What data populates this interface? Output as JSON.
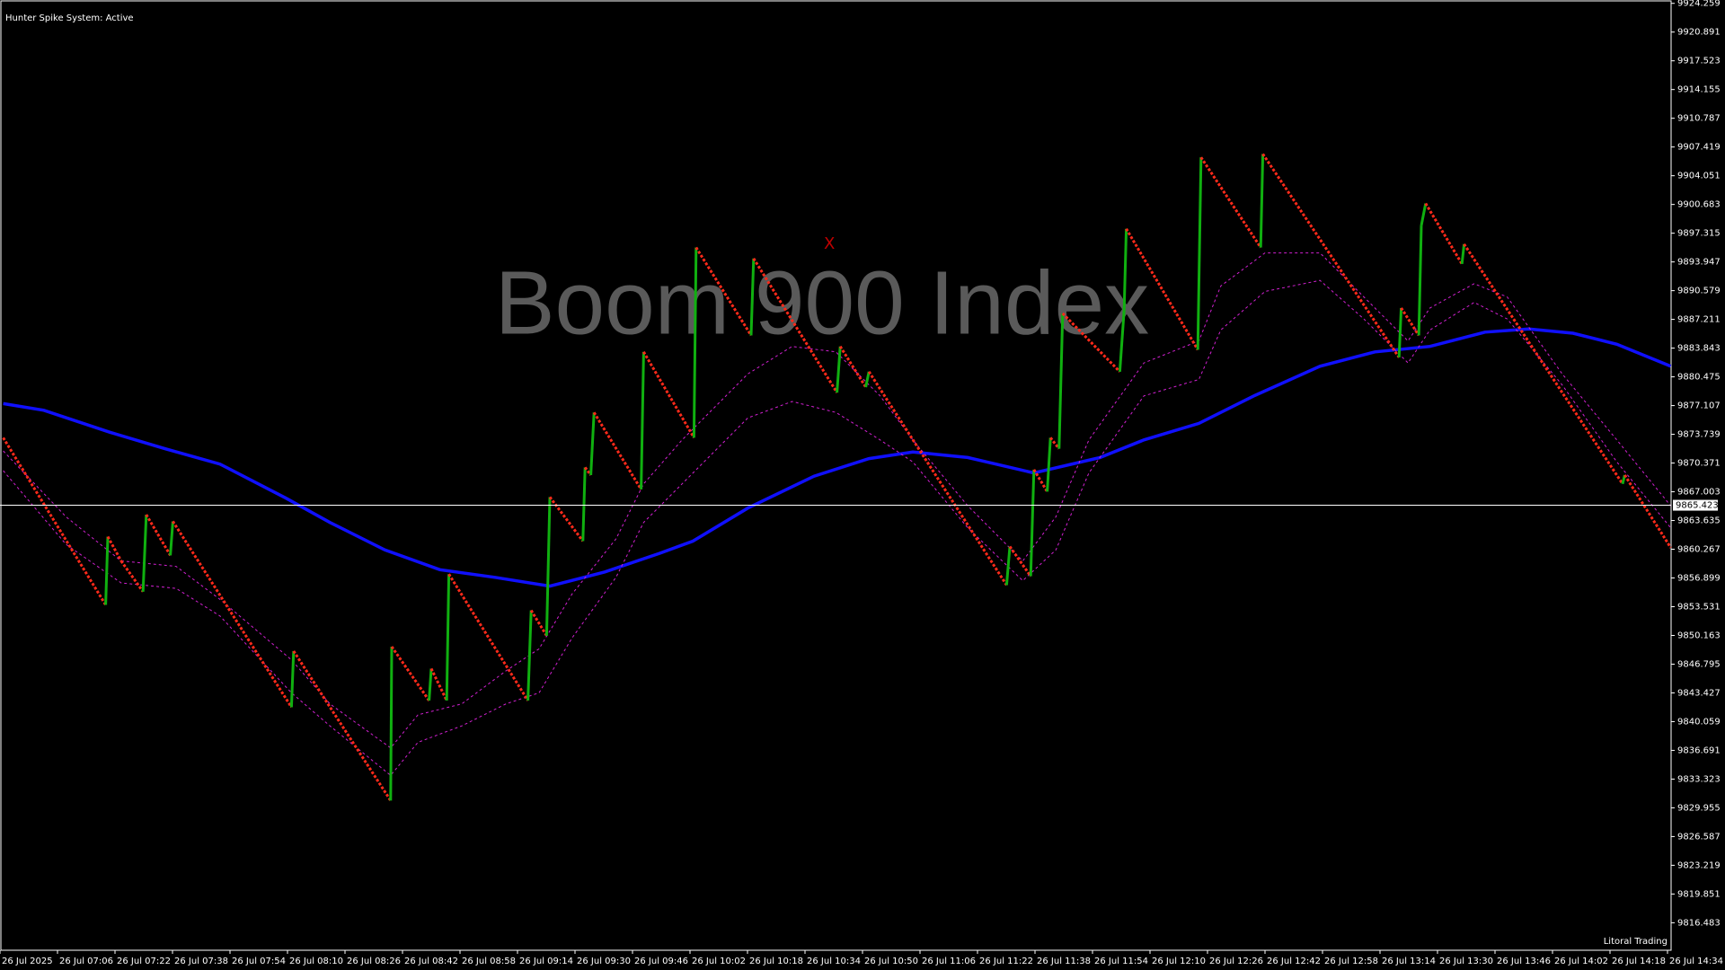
{
  "chart_data": {
    "type": "line",
    "title": "Boom 900 Index",
    "indicator_label": "Hunter Spike System: Active",
    "footer_label": "Litoral Trading",
    "marker_annotation": {
      "text": "X",
      "x": 640.8,
      "y": 9896.03,
      "color": "#c00000"
    },
    "current_price": 9865.423,
    "xlim": [
      410,
      875
    ],
    "ylim": [
      9813.26,
      9924.65
    ],
    "xticks": [
      {
        "value": 410,
        "label": "26 Jul 2025"
      },
      {
        "value": 426,
        "label": "26 Jul 07:06"
      },
      {
        "value": 442,
        "label": "26 Jul 07:22"
      },
      {
        "value": 458,
        "label": "26 Jul 07:38"
      },
      {
        "value": 474,
        "label": "26 Jul 07:54"
      },
      {
        "value": 490,
        "label": "26 Jul 08:10"
      },
      {
        "value": 506,
        "label": "26 Jul 08:26"
      },
      {
        "value": 522,
        "label": "26 Jul 08:42"
      },
      {
        "value": 538,
        "label": "26 Jul 08:58"
      },
      {
        "value": 554,
        "label": "26 Jul 09:14"
      },
      {
        "value": 570,
        "label": "26 Jul 09:30"
      },
      {
        "value": 586,
        "label": "26 Jul 09:46"
      },
      {
        "value": 602,
        "label": "26 Jul 10:02"
      },
      {
        "value": 618,
        "label": "26 Jul 10:18"
      },
      {
        "value": 634,
        "label": "26 Jul 10:34"
      },
      {
        "value": 650,
        "label": "26 Jul 10:50"
      },
      {
        "value": 666,
        "label": "26 Jul 11:06"
      },
      {
        "value": 682,
        "label": "26 Jul 11:22"
      },
      {
        "value": 698,
        "label": "26 Jul 11:38"
      },
      {
        "value": 714,
        "label": "26 Jul 11:54"
      },
      {
        "value": 730,
        "label": "26 Jul 12:10"
      },
      {
        "value": 746,
        "label": "26 Jul 12:26"
      },
      {
        "value": 762,
        "label": "26 Jul 12:42"
      },
      {
        "value": 778,
        "label": "26 Jul 12:58"
      },
      {
        "value": 794,
        "label": "26 Jul 13:14"
      },
      {
        "value": 810,
        "label": "26 Jul 13:30"
      },
      {
        "value": 826,
        "label": "26 Jul 13:46"
      },
      {
        "value": 842,
        "label": "26 Jul 14:02"
      },
      {
        "value": 858,
        "label": "26 Jul 14:18"
      },
      {
        "value": 874,
        "label": "26 Jul 14:34"
      }
    ],
    "yticks": [
      9924.259,
      9920.891,
      9917.523,
      9914.155,
      9910.787,
      9907.419,
      9904.051,
      9900.683,
      9897.315,
      9893.947,
      9890.579,
      9887.211,
      9883.843,
      9880.475,
      9877.107,
      9873.739,
      9870.371,
      9867.003,
      9863.635,
      9860.267,
      9856.899,
      9853.531,
      9850.163,
      9846.795,
      9843.427,
      9840.059,
      9836.691,
      9833.323,
      9829.955,
      9826.587,
      9823.219,
      9819.851,
      9816.483
    ],
    "series": [
      {
        "color": "#ff2a1a",
        "up_color": "#10b010",
        "width": 3,
        "x": [
          410.9,
          439.4,
          440.0,
          443.7,
          449.8,
          450.7,
          457.4,
          458.1,
          491.1,
          491.7,
          518.7,
          519.0,
          529.4,
          530.0,
          534.3,
          534.9,
          556.9,
          557.8,
          562.1,
          563.0,
          572.2,
          572.8,
          574.4,
          575.3,
          588.4,
          589.1,
          603.1,
          603.7,
          619.0,
          619.7,
          642.9,
          643.8,
          650.9,
          651.8,
          690.1,
          691.0,
          696.8,
          697.7,
          701.4,
          702.3,
          704.7,
          705.7,
          721.6,
          722.8,
          723.4,
          743.3,
          744.2,
          760.8,
          761.4,
          799.3,
          799.9,
          804.8,
          805.5,
          806.7,
          816.8,
          817.4,
          861.5,
          862.1,
          874.9
        ],
        "values": [
          9873.34,
          9853.74,
          9861.74,
          9858.9,
          9855.29,
          9864.32,
          9859.55,
          9863.54,
          9841.75,
          9848.33,
          9830.8,
          9848.85,
          9842.53,
          9846.27,
          9842.53,
          9857.35,
          9842.53,
          9853.1,
          9850.13,
          9866.38,
          9861.22,
          9869.86,
          9868.96,
          9876.3,
          9867.28,
          9883.4,
          9873.34,
          9895.64,
          9885.33,
          9894.35,
          9878.63,
          9884.04,
          9879.27,
          9881.08,
          9856.06,
          9860.58,
          9857.1,
          9869.6,
          9867.02,
          9873.34,
          9872.05,
          9887.91,
          9881.08,
          9888.29,
          9897.83,
          9883.65,
          9906.21,
          9895.64,
          9906.6,
          9882.75,
          9888.55,
          9885.33,
          9898.22,
          9900.8,
          9893.71,
          9896.03,
          9867.93,
          9868.96,
          9860.45
        ]
      },
      {
        "color": "#1010ff",
        "width": 3.5,
        "x": [
          410.9,
          422.2,
          440.6,
          455.9,
          471.2,
          489.6,
          501.8,
          517.1,
          532.4,
          547.7,
          563.0,
          578.3,
          593.6,
          602.8,
          618.1,
          636.5,
          651.8,
          664.0,
          679.3,
          697.7,
          716.1,
          728.3,
          743.6,
          758.9,
          777.3,
          792.6,
          807.9,
          823.2,
          835.4,
          847.7,
          859.9,
          874.9
        ],
        "values": [
          9877.34,
          9876.56,
          9873.98,
          9872.05,
          9870.25,
          9866.25,
          9863.41,
          9860.19,
          9857.87,
          9856.97,
          9855.94,
          9857.61,
          9859.8,
          9861.22,
          9865.09,
          9868.83,
          9870.89,
          9871.66,
          9871.02,
          9869.21,
          9871.02,
          9873.08,
          9875.02,
          9878.24,
          9881.72,
          9883.4,
          9884.04,
          9885.72,
          9886.1,
          9885.59,
          9884.3,
          9881.72
        ]
      },
      {
        "color": "#d020d0",
        "width": 1,
        "line_style": "dashed",
        "x": [
          410.9,
          428.4,
          443.7,
          459.0,
          471.2,
          491.1,
          501.8,
          518.7,
          526.3,
          538.5,
          550.8,
          560.0,
          569.2,
          581.4,
          589.1,
          599.8,
          618.1,
          630.4,
          642.6,
          654.9,
          664.0,
          679.3,
          694.6,
          703.8,
          713.0,
          728.3,
          743.6,
          749.7,
          762.0,
          777.3,
          789.5,
          801.8,
          807.9,
          820.2,
          829.4,
          844.7,
          859.9,
          874.9
        ],
        "values": [
          9871.79,
          9864.06,
          9858.9,
          9858.26,
          9854.39,
          9847.3,
          9842.14,
          9836.98,
          9840.85,
          9842.14,
          9846.01,
          9848.59,
          9855.03,
          9861.48,
          9867.93,
          9873.08,
          9880.82,
          9884.04,
          9883.4,
          9878.24,
          9873.08,
          9865.35,
          9858.9,
          9864.06,
          9873.08,
          9882.11,
          9884.68,
          9891.13,
          9895.0,
          9895.0,
          9889.84,
          9884.68,
          9888.55,
          9891.39,
          9889.84,
          9880.82,
          9873.08,
          9865.35
        ]
      },
      {
        "color": "#d020d0",
        "width": 1,
        "line_style": "dashed",
        "x": [
          410.9,
          428.4,
          443.7,
          459.0,
          471.2,
          491.1,
          501.8,
          518.7,
          526.3,
          538.5,
          550.8,
          560.0,
          569.2,
          581.4,
          589.1,
          599.8,
          618.1,
          630.4,
          642.6,
          654.9,
          664.0,
          679.3,
          694.6,
          703.8,
          713.0,
          728.3,
          743.6,
          749.7,
          762.0,
          777.3,
          789.5,
          801.8,
          807.9,
          820.2,
          829.4,
          844.7,
          859.9,
          874.9
        ],
        "values": [
          9869.47,
          9860.83,
          9856.32,
          9855.68,
          9852.45,
          9843.43,
          9839.56,
          9833.76,
          9837.63,
          9839.56,
          9842.14,
          9843.43,
          9849.88,
          9856.97,
          9863.41,
          9867.93,
          9875.66,
          9877.59,
          9876.3,
          9873.08,
          9870.5,
          9862.77,
          9856.58,
          9860.19,
          9869.21,
          9878.24,
          9880.17,
          9885.97,
          9890.49,
          9891.78,
          9887.26,
          9882.11,
          9885.97,
          9889.2,
          9887.26,
          9879.53,
          9870.5,
          9862.77
        ]
      }
    ]
  }
}
